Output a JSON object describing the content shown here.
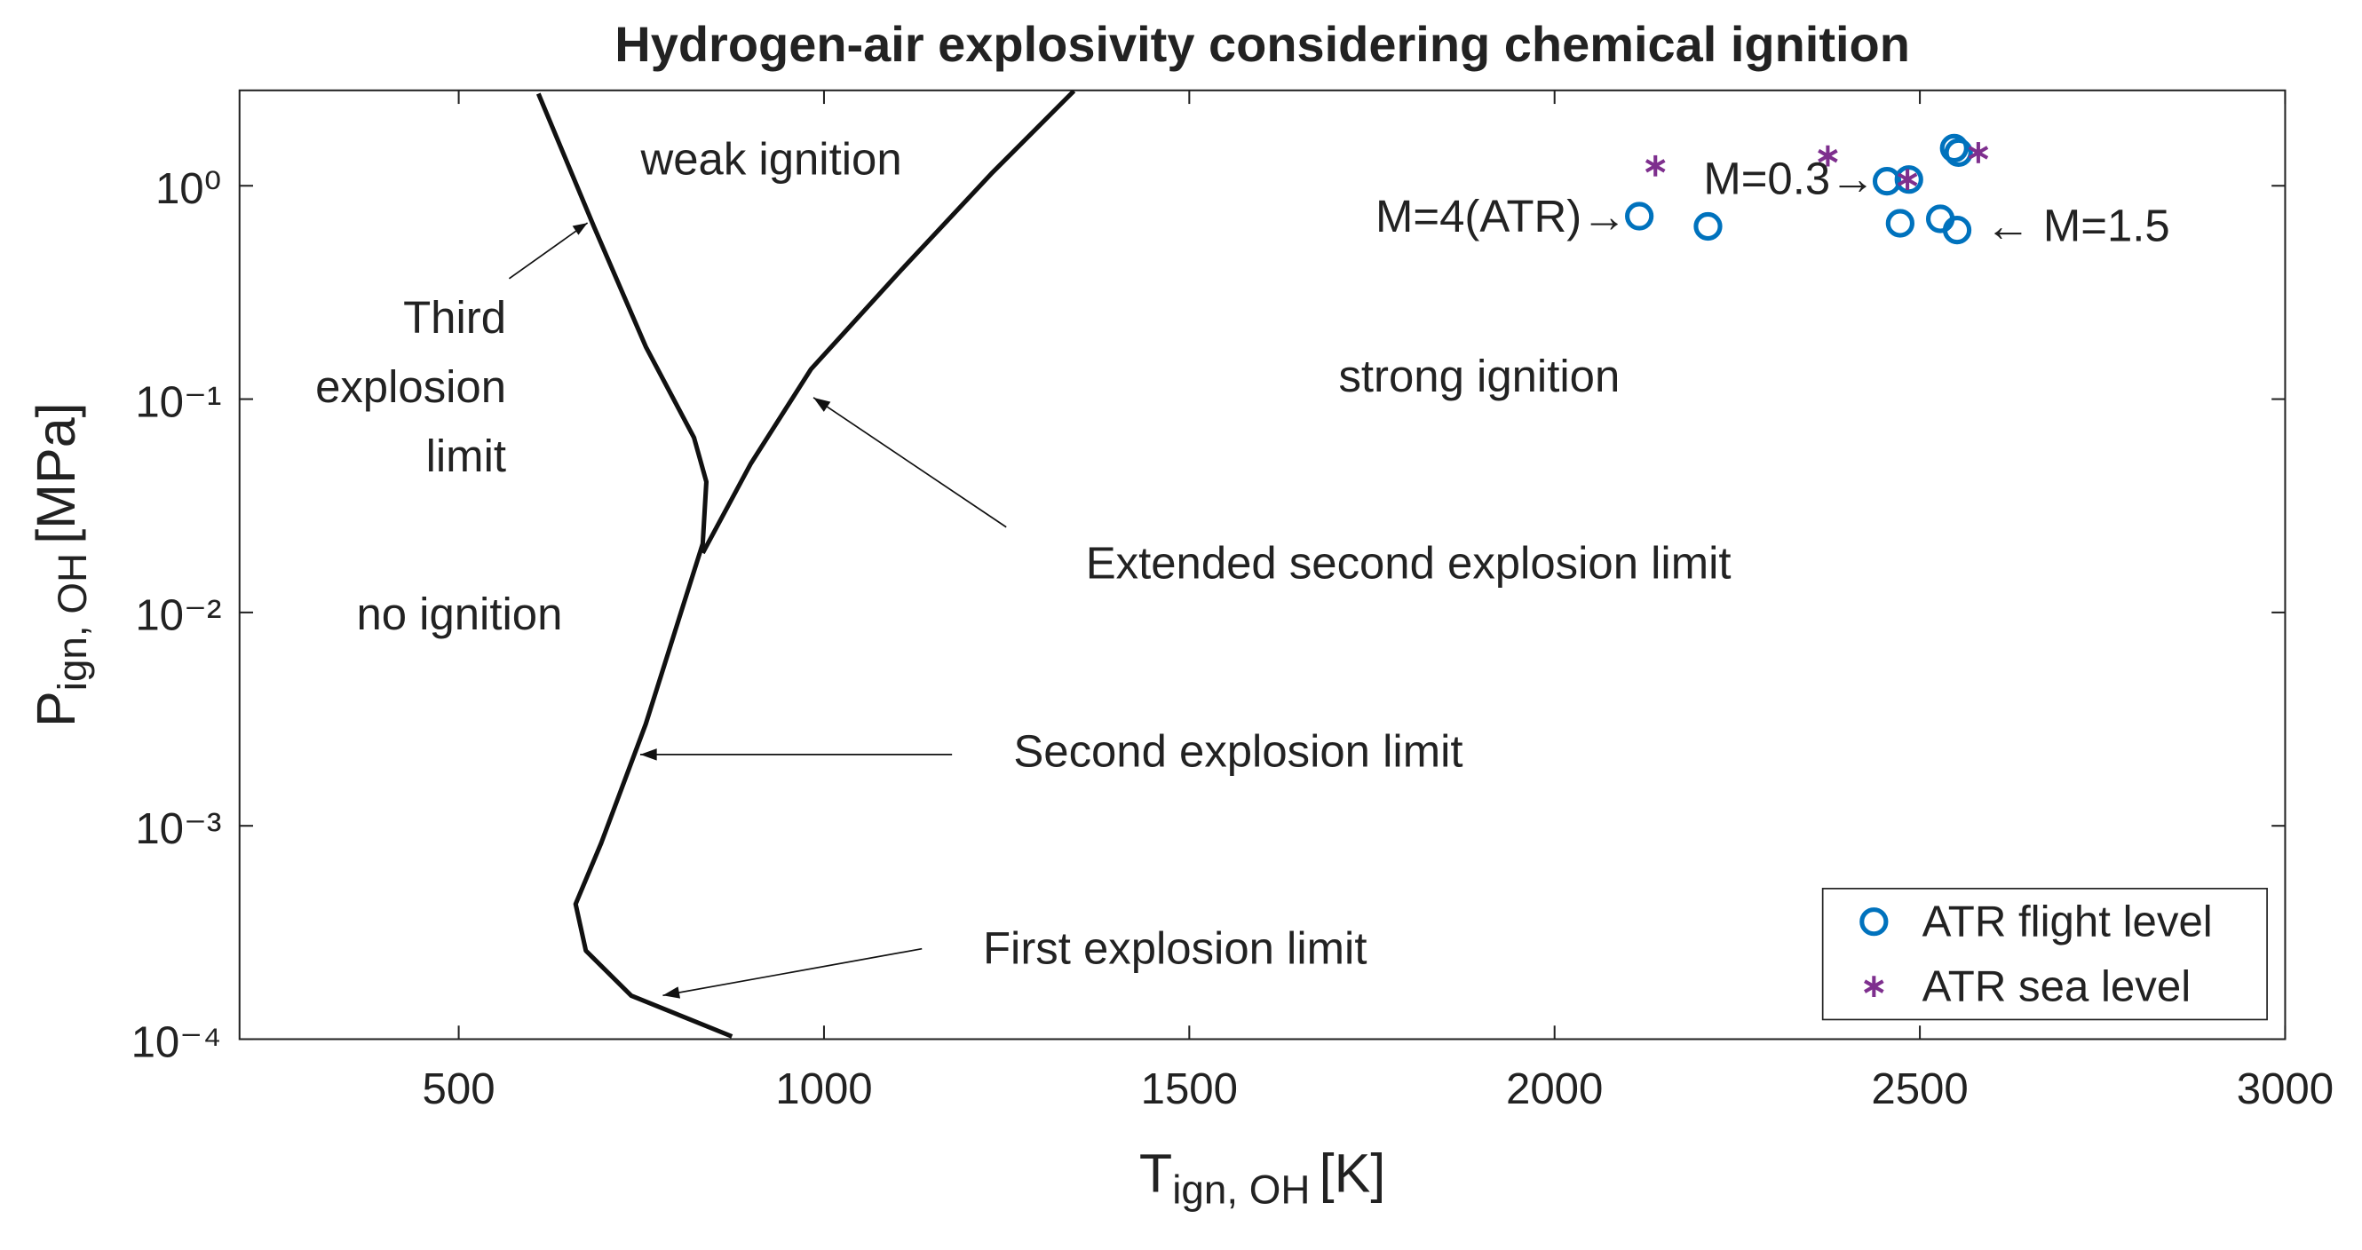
{
  "chart_data": {
    "type": "line-scatter",
    "title": "Hydrogen-air explosivity considering chemical ignition",
    "xlabel": {
      "main": "T",
      "subscript": "ign, OH",
      "unit": "[K]"
    },
    "ylabel": {
      "main": "P",
      "subscript": "ign, OH",
      "unit": "[MPa]"
    },
    "xlim": [
      200,
      3000
    ],
    "xticks": [
      500,
      1000,
      1500,
      2000,
      2500,
      3000
    ],
    "ylim": [
      0.0001,
      2.8
    ],
    "yscale": "log",
    "yticks": [
      {
        "value": 0.0001,
        "label": "10⁻⁴"
      },
      {
        "value": 0.001,
        "label": "10⁻³"
      },
      {
        "value": 0.01,
        "label": "10⁻²"
      },
      {
        "value": 0.1,
        "label": "10⁻¹"
      },
      {
        "value": 1,
        "label": "10⁰"
      }
    ],
    "lines": [
      {
        "color": "#111111",
        "x": [
          609,
          685,
          756,
          822,
          839,
          834,
          808,
          756,
          695,
          660,
          674,
          736,
          874
        ],
        "values": [
          2.7,
          0.645,
          0.176,
          0.066,
          0.041,
          0.021,
          0.011,
          0.003,
          0.00083,
          0.00043,
          0.00026,
          0.00016,
          0.000103
        ]
      },
      {
        "color": "#111111",
        "x": [
          834,
          900,
          982,
          1105,
          1229,
          1342
        ],
        "values": [
          0.019,
          0.05,
          0.138,
          0.4,
          1.14,
          2.78
        ]
      }
    ],
    "series": [
      {
        "name": "ATR flight level",
        "color": "#0072bd",
        "marker": "circle",
        "x": [
          2116,
          2210,
          2455,
          2485,
          2473,
          2528,
          2551,
          2547,
          2553
        ],
        "values": [
          0.72,
          0.645,
          1.05,
          1.07,
          0.667,
          0.7,
          0.62,
          1.5,
          1.43
        ]
      },
      {
        "name": "ATR sea level",
        "color": "#7e2f8e",
        "marker": "star",
        "x": [
          2138,
          2374,
          2483,
          2580
        ],
        "values": [
          1.24,
          1.38,
          1.07,
          1.43
        ]
      }
    ],
    "annotations": [
      {
        "text": "weak ignition"
      },
      {
        "text": "strong ignition"
      },
      {
        "text": "no ignition"
      },
      {
        "text": [
          "Third",
          "explosion",
          "limit"
        ]
      },
      {
        "text": "Extended second explosion limit"
      },
      {
        "text": "Second explosion limit"
      },
      {
        "text": "First explosion limit"
      },
      {
        "text": "M=4(ATR)→"
      },
      {
        "text": "M=0.3→"
      },
      {
        "text": "← M=1.5"
      }
    ],
    "legend": "lower right"
  }
}
